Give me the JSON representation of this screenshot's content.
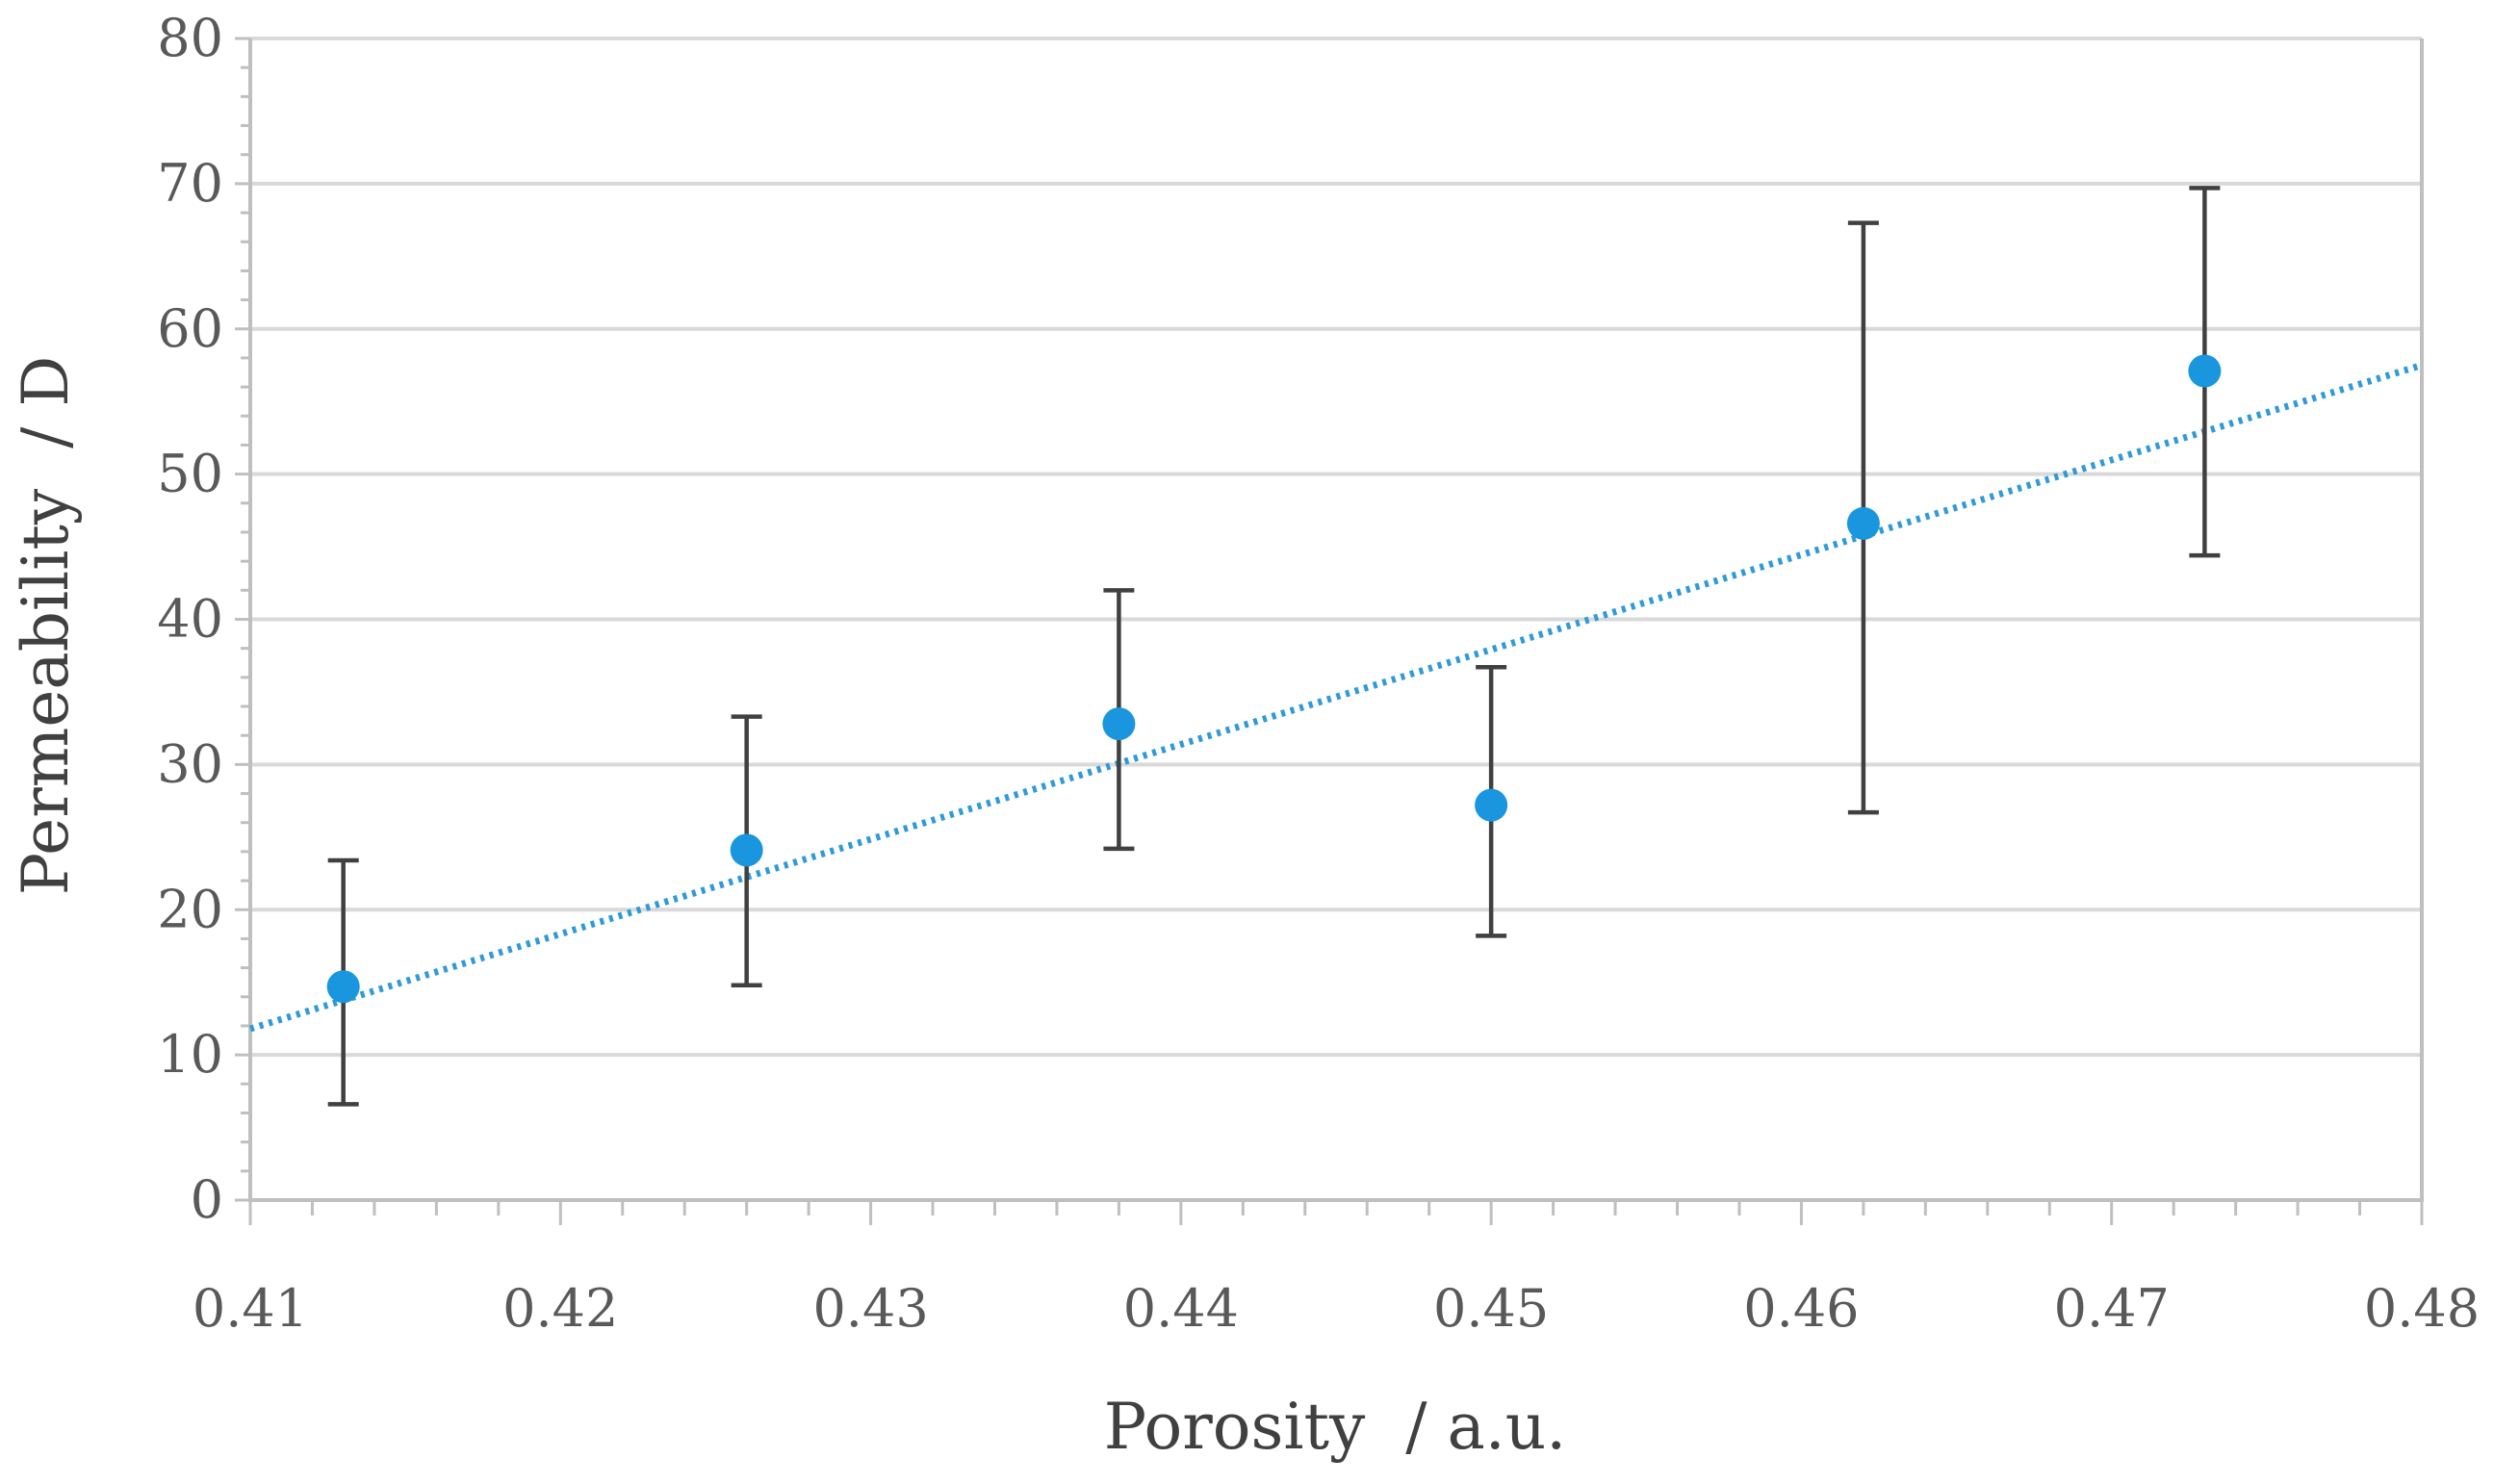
{
  "chart_data": {
    "type": "scatter",
    "title": "",
    "xlabel": "Porosity  / a.u.",
    "ylabel": "Permeability  / D",
    "xlim": [
      0.41,
      0.48
    ],
    "ylim": [
      0,
      80
    ],
    "x_ticks": [
      0.41,
      0.42,
      0.43,
      0.44,
      0.45,
      0.46,
      0.47,
      0.48
    ],
    "x_tick_labels": [
      "0.41",
      "0.42",
      "0.43",
      "0.44",
      "0.45",
      "0.46",
      "0.47",
      "0.48"
    ],
    "y_ticks": [
      0,
      10,
      20,
      30,
      40,
      50,
      60,
      70,
      80
    ],
    "y_tick_labels": [
      "0",
      "10",
      "20",
      "30",
      "40",
      "50",
      "60",
      "70",
      "80"
    ],
    "grid": "horizontal",
    "legend": "none",
    "series": [
      {
        "name": "Permeability",
        "color": "#1a96de",
        "points": [
          {
            "x": 0.413,
            "y": 14.7,
            "err_low": 6.6,
            "err_high": 23.4
          },
          {
            "x": 0.426,
            "y": 24.1,
            "err_low": 14.8,
            "err_high": 33.3
          },
          {
            "x": 0.438,
            "y": 32.8,
            "err_low": 24.2,
            "err_high": 42.0
          },
          {
            "x": 0.45,
            "y": 27.2,
            "err_low": 18.2,
            "err_high": 36.7
          },
          {
            "x": 0.462,
            "y": 46.6,
            "err_low": 26.7,
            "err_high": 67.3
          },
          {
            "x": 0.473,
            "y": 57.1,
            "err_low": 44.4,
            "err_high": 69.7
          }
        ]
      }
    ],
    "trendline": {
      "type": "linear",
      "style": "dotted",
      "color": "#2e9ad8",
      "start": {
        "x": 0.41,
        "y": 11.8
      },
      "end": {
        "x": 0.48,
        "y": 57.5
      }
    }
  }
}
